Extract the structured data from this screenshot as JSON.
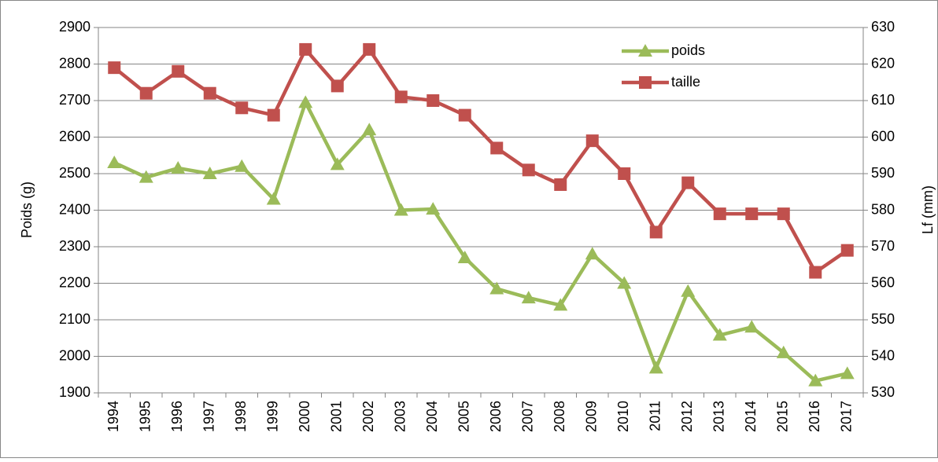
{
  "chart_data": {
    "type": "line",
    "categories": [
      "1994",
      "1995",
      "1996",
      "1997",
      "1998",
      "1999",
      "2000",
      "2001",
      "2002",
      "2003",
      "2004",
      "2005",
      "2006",
      "2007",
      "2008",
      "2009",
      "2010",
      "2011",
      "2012",
      "2013",
      "2014",
      "2015",
      "2016",
      "2017"
    ],
    "series": [
      {
        "name": "poids",
        "color": "#9bbb59",
        "marker": "triangle",
        "values": [
          2530,
          2490,
          2515,
          2500,
          2520,
          2430,
          2695,
          2525,
          2620,
          2400,
          2403,
          2270,
          2185,
          2160,
          2140,
          2280,
          2200,
          1968,
          2178,
          2058,
          2080,
          2010,
          1933,
          1953
        ]
      },
      {
        "name": "taille",
        "color": "#c0504d",
        "marker": "square",
        "axis": "y2",
        "values": [
          619,
          612,
          618,
          612,
          608,
          606,
          624,
          614,
          624,
          611,
          610,
          606,
          597,
          591,
          587,
          599,
          590,
          574,
          587.5,
          579,
          579,
          579,
          563,
          569
        ]
      }
    ],
    "y_label": "Poids (g)",
    "y2_label": "Lf (mm)",
    "ylim": [
      1900,
      2900
    ],
    "yticks": [
      1900,
      2000,
      2100,
      2200,
      2300,
      2400,
      2500,
      2600,
      2700,
      2800,
      2900
    ],
    "y2lim": [
      530,
      630
    ],
    "y2ticks": [
      530,
      540,
      550,
      560,
      570,
      580,
      590,
      600,
      610,
      620,
      630
    ],
    "grid": true,
    "legend": "top-right"
  }
}
